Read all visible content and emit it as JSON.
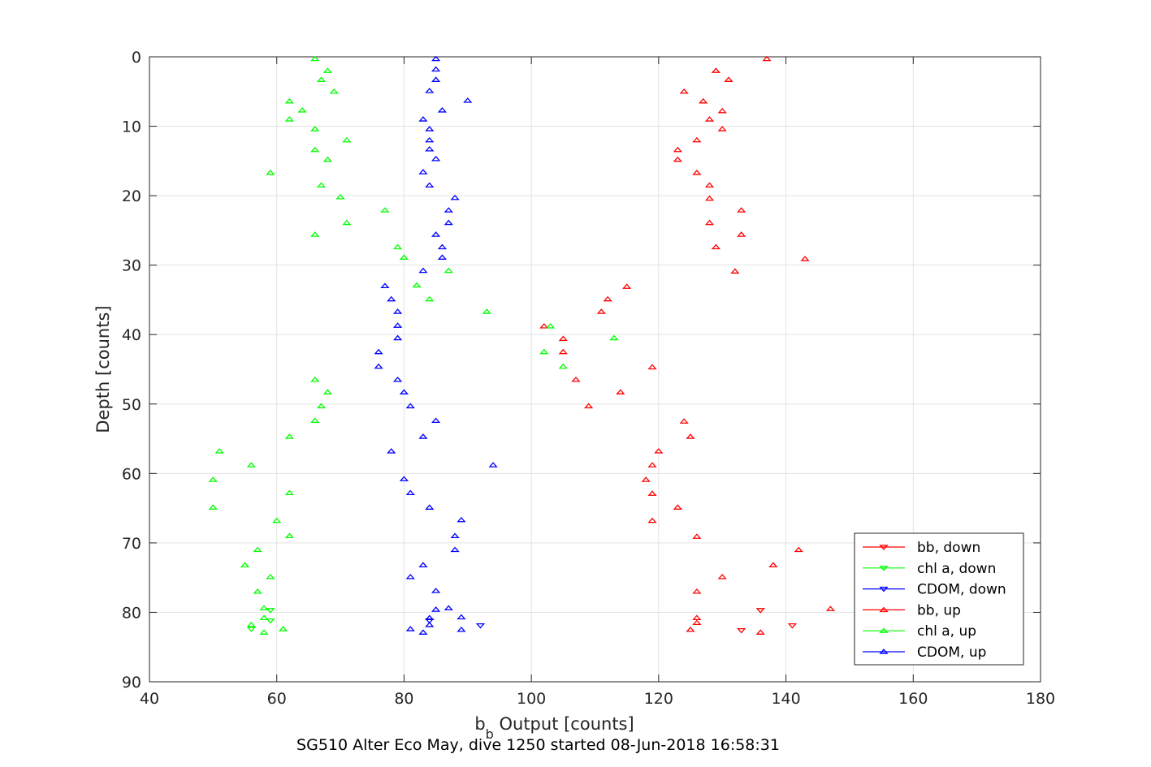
{
  "chart_data": {
    "type": "scatter",
    "title": "",
    "xlabel": "b",
    "xlabel_sub": "b",
    "xlabel_rest": " Output [counts]",
    "ylabel": "Depth [counts]",
    "caption": "SG510 Alter Eco May, dive 1250 started 08-Jun-2018 16:58:31",
    "xlim": [
      40,
      180
    ],
    "ylim": [
      0,
      90
    ],
    "y_reversed": true,
    "x_ticks": [
      "40",
      "60",
      "80",
      "100",
      "120",
      "140",
      "160",
      "180"
    ],
    "y_ticks": [
      "0",
      "10",
      "20",
      "30",
      "40",
      "50",
      "60",
      "70",
      "80",
      "90"
    ],
    "grid": true,
    "legend_position": "bottom-right",
    "series": [
      {
        "name": "bb, down",
        "color": "#ff0000",
        "marker": "triangle-down",
        "points": [
          [
            136,
            79.7
          ],
          [
            141,
            81.9
          ],
          [
            133,
            82.6
          ]
        ]
      },
      {
        "name": "chl a, down",
        "color": "#00ff00",
        "marker": "triangle-down",
        "points": [
          [
            59,
            79.7
          ],
          [
            59,
            81.2
          ],
          [
            56,
            82.4
          ]
        ]
      },
      {
        "name": "CDOM, down",
        "color": "#0000ff",
        "marker": "triangle-down",
        "points": [
          [
            84,
            81.2
          ],
          [
            92,
            81.9
          ]
        ]
      },
      {
        "name": "bb, up",
        "color": "#ff0000",
        "marker": "triangle-up",
        "points": [
          [
            137,
            0.3
          ],
          [
            129,
            2.0
          ],
          [
            131,
            3.3
          ],
          [
            124,
            5.0
          ],
          [
            127,
            6.4
          ],
          [
            130,
            7.8
          ],
          [
            128,
            9.0
          ],
          [
            130,
            10.4
          ],
          [
            126,
            12.0
          ],
          [
            123,
            13.4
          ],
          [
            123,
            14.8
          ],
          [
            126,
            16.7
          ],
          [
            128,
            18.5
          ],
          [
            128,
            20.4
          ],
          [
            133,
            22.1
          ],
          [
            128,
            23.9
          ],
          [
            133,
            25.6
          ],
          [
            129,
            27.4
          ],
          [
            143,
            29.1
          ],
          [
            132,
            30.9
          ],
          [
            115,
            33.1
          ],
          [
            112,
            34.9
          ],
          [
            111,
            36.7
          ],
          [
            102,
            38.8
          ],
          [
            105,
            40.6
          ],
          [
            105,
            42.5
          ],
          [
            119,
            44.7
          ],
          [
            107,
            46.5
          ],
          [
            114,
            48.3
          ],
          [
            109,
            50.3
          ],
          [
            124,
            52.5
          ],
          [
            125,
            54.7
          ],
          [
            120,
            56.8
          ],
          [
            119,
            58.8
          ],
          [
            118,
            60.9
          ],
          [
            119,
            62.9
          ],
          [
            123,
            64.9
          ],
          [
            119,
            66.8
          ],
          [
            126,
            69.1
          ],
          [
            142,
            71.0
          ],
          [
            138,
            73.2
          ],
          [
            130,
            74.9
          ],
          [
            126,
            77.0
          ],
          [
            147,
            79.5
          ],
          [
            126,
            80.8
          ],
          [
            126,
            81.5
          ],
          [
            125,
            82.5
          ],
          [
            136,
            82.9
          ]
        ]
      },
      {
        "name": "chl a, up",
        "color": "#00ff00",
        "marker": "triangle-up",
        "points": [
          [
            66,
            0.3
          ],
          [
            68,
            2.0
          ],
          [
            67,
            3.3
          ],
          [
            69,
            5.0
          ],
          [
            62,
            6.4
          ],
          [
            64,
            7.7
          ],
          [
            62,
            9.0
          ],
          [
            66,
            10.4
          ],
          [
            71,
            12.0
          ],
          [
            66,
            13.4
          ],
          [
            68,
            14.8
          ],
          [
            59,
            16.7
          ],
          [
            67,
            18.5
          ],
          [
            70,
            20.2
          ],
          [
            77,
            22.1
          ],
          [
            71,
            23.9
          ],
          [
            66,
            25.6
          ],
          [
            79,
            27.4
          ],
          [
            80,
            28.9
          ],
          [
            87,
            30.8
          ],
          [
            82,
            32.9
          ],
          [
            84,
            34.9
          ],
          [
            93,
            36.7
          ],
          [
            103,
            38.8
          ],
          [
            113,
            40.5
          ],
          [
            102,
            42.5
          ],
          [
            105,
            44.6
          ],
          [
            66,
            46.5
          ],
          [
            68,
            48.3
          ],
          [
            67,
            50.3
          ],
          [
            66,
            52.4
          ],
          [
            62,
            54.7
          ],
          [
            51,
            56.8
          ],
          [
            56,
            58.8
          ],
          [
            50,
            60.9
          ],
          [
            62,
            62.8
          ],
          [
            50,
            64.9
          ],
          [
            60,
            66.8
          ],
          [
            62,
            69.0
          ],
          [
            57,
            71.0
          ],
          [
            55,
            73.2
          ],
          [
            59,
            74.9
          ],
          [
            57,
            77.0
          ],
          [
            58,
            79.4
          ],
          [
            58,
            80.8
          ],
          [
            56,
            81.8
          ],
          [
            61,
            82.4
          ],
          [
            58,
            82.9
          ]
        ]
      },
      {
        "name": "CDOM, up",
        "color": "#0000ff",
        "marker": "triangle-up",
        "points": [
          [
            85,
            0.3
          ],
          [
            85,
            1.8
          ],
          [
            85,
            3.3
          ],
          [
            84,
            4.9
          ],
          [
            90,
            6.3
          ],
          [
            86,
            7.7
          ],
          [
            83,
            9.0
          ],
          [
            84,
            10.4
          ],
          [
            84,
            12.0
          ],
          [
            84,
            13.3
          ],
          [
            85,
            14.7
          ],
          [
            83,
            16.6
          ],
          [
            84,
            18.5
          ],
          [
            88,
            20.3
          ],
          [
            87,
            22.1
          ],
          [
            87,
            23.9
          ],
          [
            85,
            25.6
          ],
          [
            86,
            27.4
          ],
          [
            86,
            28.9
          ],
          [
            83,
            30.8
          ],
          [
            77,
            33.0
          ],
          [
            78,
            34.9
          ],
          [
            79,
            36.7
          ],
          [
            79,
            38.7
          ],
          [
            79,
            40.5
          ],
          [
            76,
            42.5
          ],
          [
            76,
            44.6
          ],
          [
            79,
            46.5
          ],
          [
            80,
            48.3
          ],
          [
            81,
            50.3
          ],
          [
            85,
            52.4
          ],
          [
            83,
            54.7
          ],
          [
            78,
            56.8
          ],
          [
            94,
            58.8
          ],
          [
            80,
            60.8
          ],
          [
            81,
            62.8
          ],
          [
            84,
            64.9
          ],
          [
            89,
            66.7
          ],
          [
            88,
            69.0
          ],
          [
            88,
            71.0
          ],
          [
            83,
            73.2
          ],
          [
            81,
            74.9
          ],
          [
            85,
            76.9
          ],
          [
            87,
            79.4
          ],
          [
            85,
            79.6
          ],
          [
            89,
            80.7
          ],
          [
            84,
            80.8
          ],
          [
            84,
            81.8
          ],
          [
            81,
            82.4
          ],
          [
            89,
            82.5
          ],
          [
            83,
            82.9
          ]
        ]
      }
    ]
  }
}
